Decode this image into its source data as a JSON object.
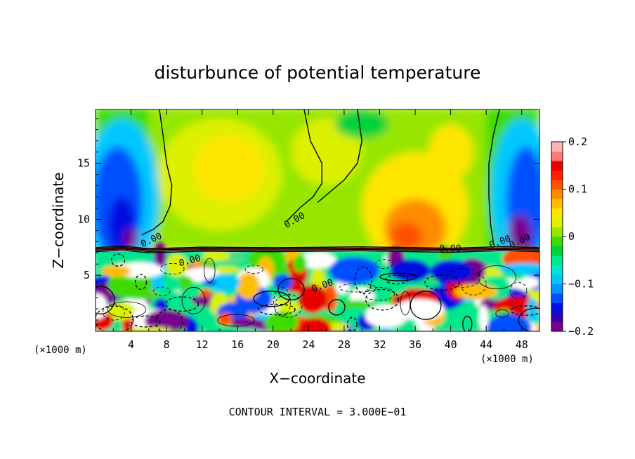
{
  "chart_data": {
    "type": "heatmap",
    "title": "disturbunce of potential temperature",
    "xlabel": "X−coordinate",
    "ylabel": "Z−coordinate",
    "x_unit": "(×1000 m)",
    "y_unit": "(×1000 m)",
    "xlim": [
      0,
      50
    ],
    "ylim": [
      0,
      19.8
    ],
    "x_ticks": [
      4,
      8,
      12,
      16,
      20,
      24,
      28,
      32,
      36,
      40,
      44,
      48
    ],
    "y_ticks": [
      5,
      10,
      15
    ],
    "colorbar": {
      "range": [
        -0.2,
        0.2
      ],
      "tick_values": [
        0.2,
        0.1,
        0,
        -0.1,
        -0.2
      ],
      "tick_labels": [
        "0.2",
        "0.1",
        "0",
        "−0.1",
        "−0.2"
      ],
      "colors": [
        "#7a0090",
        "#3200b8",
        "#0010e0",
        "#0050ff",
        "#0095ff",
        "#00c8ff",
        "#00e6d2",
        "#00e68c",
        "#00d23c",
        "#3cdc00",
        "#96e600",
        "#dcf000",
        "#ffe600",
        "#ffbe00",
        "#ff8c00",
        "#ff5000",
        "#ff1e00",
        "#e60000",
        "#ff7878",
        "#ffb4b4"
      ]
    },
    "contour_labels": [
      "0.00",
      "0.00",
      "0.00",
      "0.00",
      "0.00",
      "0.00",
      "0.00"
    ],
    "contour_interval_text": "CONTOUR INTERVAL = 3.000E−01"
  }
}
